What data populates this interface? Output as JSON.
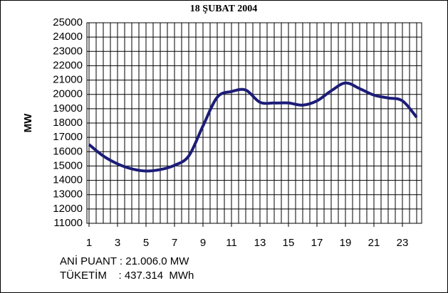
{
  "chart_data": {
    "type": "line",
    "title": "18 ŞUBAT 2004",
    "y_label": "MW",
    "x": [
      1,
      2,
      3,
      4,
      5,
      6,
      7,
      8,
      9,
      10,
      11,
      12,
      13,
      14,
      15,
      16,
      17,
      18,
      19,
      20,
      21,
      22,
      23,
      24
    ],
    "series": [
      {
        "name": "MW",
        "color": "#1c1c78",
        "values": [
          16500,
          15700,
          15150,
          14800,
          14650,
          14750,
          15050,
          15700,
          17800,
          19800,
          20200,
          20300,
          19450,
          19400,
          19400,
          19250,
          19550,
          20250,
          20800,
          20400,
          19950,
          19750,
          19550,
          18400
        ]
      }
    ],
    "xlim": [
      0.85,
      24.35
    ],
    "xticks": [
      1,
      3,
      5,
      7,
      9,
      11,
      13,
      15,
      17,
      19,
      21,
      23
    ],
    "ylim": [
      11000,
      25000
    ],
    "yticks": [
      11000,
      12000,
      13000,
      14000,
      15000,
      16000,
      17000,
      18000,
      19000,
      20000,
      21000,
      22000,
      23000,
      24000,
      25000
    ],
    "grid": true,
    "legend": false,
    "annotations": [
      "ANİ PUANT : 21.006.0 MW",
      "TÜKETİM    : 437.314  MWh"
    ]
  }
}
